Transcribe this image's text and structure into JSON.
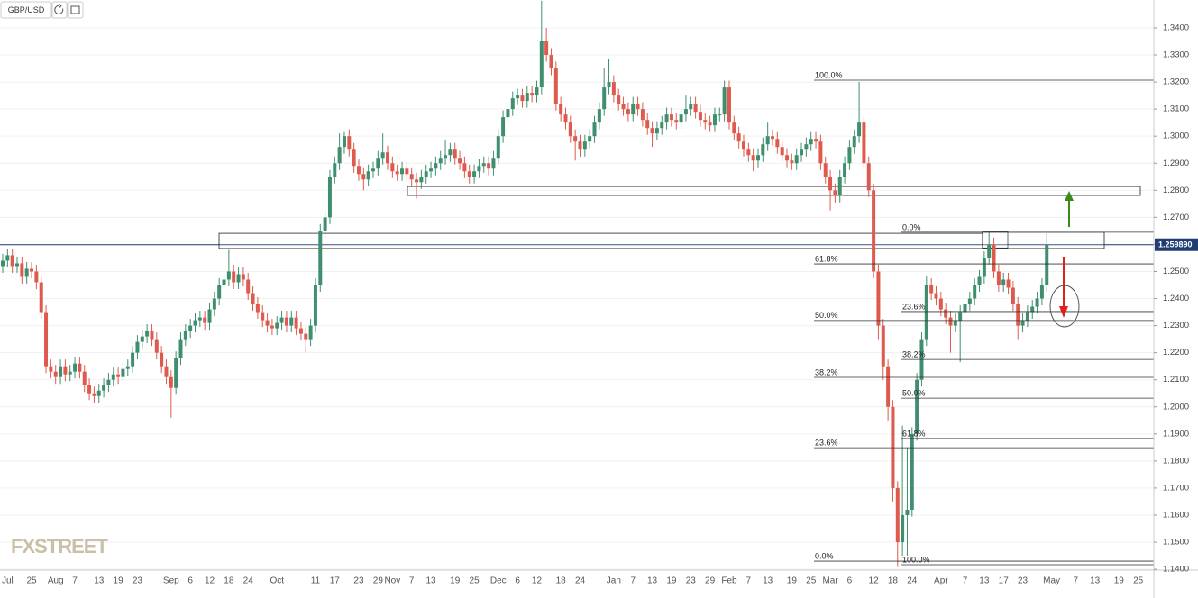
{
  "chart_data": {
    "type": "candlestick",
    "title": "GBP/USD",
    "watermark": "FXSTREET",
    "up_color": "#3f8f6e",
    "down_color": "#df5a4e",
    "ylim": [
      1.1397,
      1.3503
    ],
    "yticks": [
      {
        "value": 1.34,
        "label": "1.3400"
      },
      {
        "value": 1.33,
        "label": "1.3300"
      },
      {
        "value": 1.32,
        "label": "1.3200"
      },
      {
        "value": 1.31,
        "label": "1.3100"
      },
      {
        "value": 1.3,
        "label": "1.3000"
      },
      {
        "value": 1.29,
        "label": "1.2900"
      },
      {
        "value": 1.28,
        "label": "1.2800"
      },
      {
        "value": 1.27,
        "label": "1.2700"
      },
      {
        "value": 1.26,
        "label": "1.2600"
      },
      {
        "value": 1.25,
        "label": "1.2500"
      },
      {
        "value": 1.24,
        "label": "1.2400"
      },
      {
        "value": 1.23,
        "label": "1.2300"
      },
      {
        "value": 1.22,
        "label": "1.2200"
      },
      {
        "value": 1.21,
        "label": "1.2100"
      },
      {
        "value": 1.2,
        "label": "1.2000"
      },
      {
        "value": 1.19,
        "label": "1.1900"
      },
      {
        "value": 1.18,
        "label": "1.1800"
      },
      {
        "value": 1.17,
        "label": "1.1700"
      },
      {
        "value": 1.16,
        "label": "1.1600"
      },
      {
        "value": 1.15,
        "label": "1.1500"
      },
      {
        "value": 1.14,
        "label": "1.1400"
      }
    ],
    "grid": true,
    "last_price": {
      "value": 1.25989,
      "label": "1.259890"
    },
    "categories": [
      null,
      "Jul",
      null,
      null,
      null,
      null,
      "25",
      null,
      null,
      null,
      null,
      "Aug",
      null,
      null,
      null,
      "7",
      null,
      null,
      null,
      null,
      "13",
      null,
      null,
      null,
      "19",
      null,
      null,
      null,
      "23",
      null,
      null,
      null,
      null,
      null,
      null,
      "Sep",
      null,
      null,
      null,
      "6",
      null,
      null,
      null,
      "12",
      null,
      null,
      null,
      "18",
      null,
      null,
      null,
      "24",
      null,
      null,
      null,
      null,
      null,
      "Oct",
      null,
      null,
      null,
      null,
      null,
      null,
      null,
      "11",
      null,
      null,
      null,
      "17",
      null,
      null,
      null,
      null,
      "23",
      null,
      null,
      null,
      "29",
      null,
      null,
      "Nov",
      null,
      null,
      null,
      "7",
      null,
      null,
      null,
      "13",
      null,
      null,
      null,
      null,
      "19",
      null,
      null,
      null,
      "25",
      null,
      null,
      null,
      null,
      "Dec",
      null,
      null,
      null,
      "6",
      null,
      null,
      null,
      "12",
      null,
      null,
      null,
      null,
      "18",
      null,
      null,
      null,
      "24",
      null,
      null,
      null,
      null,
      null,
      null,
      "Jan",
      null,
      null,
      null,
      "7",
      null,
      null,
      null,
      "13",
      null,
      null,
      null,
      "19",
      null,
      null,
      null,
      "23",
      null,
      null,
      null,
      "29",
      null,
      null,
      null,
      "Feb",
      null,
      null,
      null,
      "7",
      null,
      null,
      null,
      "13",
      null,
      null,
      null,
      null,
      "19",
      null,
      null,
      null,
      "25",
      null,
      null,
      null,
      "Mar",
      null,
      null,
      null,
      "6",
      null,
      null,
      null,
      null,
      "12",
      null,
      null,
      null,
      "18",
      null,
      null,
      null,
      "24",
      null,
      null,
      null,
      null,
      null,
      "Apr",
      null,
      null,
      null,
      null,
      "7",
      null,
      null,
      null,
      "13",
      null,
      null,
      null,
      "17",
      null,
      null,
      null,
      "23",
      null,
      null,
      null,
      null,
      null,
      "May",
      null,
      null,
      null,
      null,
      "7",
      null,
      null,
      null,
      "13",
      null,
      null,
      null,
      null,
      "19",
      null,
      null,
      null,
      "25",
      null
    ],
    "open": [
      1.252,
      1.254,
      1.256,
      1.252,
      1.253,
      1.248,
      1.251,
      1.25,
      1.246,
      1.235,
      1.215,
      1.213,
      1.211,
      1.215,
      1.212,
      1.213,
      1.216,
      1.213,
      1.208,
      1.205,
      1.204,
      1.206,
      1.208,
      1.21,
      1.212,
      1.211,
      1.214,
      1.215,
      1.22,
      1.224,
      1.226,
      1.228,
      1.225,
      1.22,
      1.215,
      1.211,
      1.207,
      1.218,
      1.225,
      1.228,
      1.23,
      1.232,
      1.233,
      1.231,
      1.236,
      1.24,
      1.245,
      1.247,
      1.25,
      1.246,
      1.249,
      1.247,
      1.242,
      1.238,
      1.235,
      1.232,
      1.23,
      1.229,
      1.231,
      1.233,
      1.23,
      1.233,
      1.229,
      1.227,
      1.225,
      1.23,
      1.245,
      1.265,
      1.27,
      1.285,
      1.29,
      1.296,
      1.3,
      1.295,
      1.289,
      1.286,
      1.284,
      1.287,
      1.288,
      1.292,
      1.294,
      1.29,
      1.287,
      1.286,
      1.288,
      1.286,
      1.284,
      1.283,
      1.285,
      1.287,
      1.288,
      1.29,
      1.292,
      1.293,
      1.295,
      1.292,
      1.29,
      1.287,
      1.285,
      1.287,
      1.289,
      1.29,
      1.288,
      1.292,
      1.3,
      1.307,
      1.31,
      1.314,
      1.315,
      1.313,
      1.316,
      1.315,
      1.318,
      1.335,
      1.33,
      1.325,
      1.312,
      1.308,
      1.305,
      1.3,
      1.298,
      1.295,
      1.298,
      1.3,
      1.305,
      1.31,
      1.318,
      1.32,
      1.315,
      1.312,
      1.31,
      1.308,
      1.312,
      1.31,
      1.306,
      1.303,
      1.301,
      1.303,
      1.305,
      1.308,
      1.306,
      1.305,
      1.308,
      1.31,
      1.312,
      1.309,
      1.306,
      1.305,
      1.304,
      1.308,
      1.308,
      1.318,
      1.305,
      1.301,
      1.298,
      1.295,
      1.293,
      1.291,
      1.293,
      1.297,
      1.3,
      1.299,
      1.296,
      1.293,
      1.291,
      1.29,
      1.293,
      1.295,
      1.297,
      1.299,
      1.298,
      1.29,
      1.285,
      1.28,
      1.278,
      1.285,
      1.29,
      1.296,
      1.3,
      1.305,
      1.29,
      1.28,
      1.25,
      1.23,
      1.215,
      1.2,
      1.17,
      1.15,
      1.16,
      1.162,
      1.19,
      1.21,
      1.225,
      1.245,
      1.242,
      1.24,
      1.236,
      1.233,
      1.23,
      1.232,
      1.235,
      1.238,
      1.24,
      1.245,
      1.248,
      1.255,
      1.26,
      1.25,
      1.245,
      1.247,
      1.244,
      1.238,
      1.23,
      1.232,
      1.235,
      1.237,
      1.24,
      1.245,
      null,
      null,
      null,
      null,
      null,
      null,
      null,
      null,
      null,
      null,
      null,
      null,
      null,
      null,
      null,
      null,
      null,
      null,
      null,
      null
    ],
    "high": [
      1.2565,
      1.2585,
      1.2585,
      1.2555,
      1.2555,
      1.2535,
      1.2535,
      1.2525,
      1.2485,
      1.2375,
      1.2175,
      1.2155,
      1.2175,
      1.2175,
      1.2155,
      1.2185,
      1.2185,
      1.2155,
      1.2105,
      1.2075,
      1.2085,
      1.2105,
      1.2125,
      1.2145,
      1.2145,
      1.2165,
      1.2175,
      1.2225,
      1.2265,
      1.2285,
      1.2305,
      1.2305,
      1.2275,
      1.2225,
      1.2175,
      1.2135,
      1.2205,
      1.2275,
      1.2305,
      1.2325,
      1.2345,
      1.2355,
      1.2355,
      1.2385,
      1.2425,
      1.2475,
      1.2495,
      1.258,
      1.2525,
      1.2515,
      1.2515,
      1.2495,
      1.2445,
      1.2405,
      1.2375,
      1.2345,
      1.2325,
      1.2335,
      1.2355,
      1.2355,
      1.2355,
      1.2355,
      1.2315,
      1.2295,
      1.2325,
      1.2475,
      1.2675,
      1.2725,
      1.2875,
      1.2925,
      1.301,
      1.3015,
      1.3025,
      1.2975,
      1.2915,
      1.2885,
      1.2895,
      1.2905,
      1.2945,
      1.301,
      1.2965,
      1.2925,
      1.2895,
      1.2905,
      1.2905,
      1.2885,
      1.2865,
      1.2875,
      1.2895,
      1.2905,
      1.2925,
      1.2945,
      1.2985,
      1.2975,
      1.2975,
      1.2945,
      1.2925,
      1.2895,
      1.2895,
      1.2915,
      1.2925,
      1.2925,
      1.2945,
      1.3025,
      1.3095,
      1.3125,
      1.3165,
      1.3175,
      1.3175,
      1.3185,
      1.3185,
      1.3205,
      1.35,
      1.34,
      1.3325,
      1.3275,
      1.3145,
      1.3105,
      1.3075,
      1.3025,
      1.3005,
      1.3005,
      1.3025,
      1.3075,
      1.3125,
      1.325,
      1.3285,
      1.3225,
      1.3175,
      1.3145,
      1.3125,
      1.3145,
      1.3145,
      1.3125,
      1.3085,
      1.3055,
      1.3055,
      1.3075,
      1.3105,
      1.3105,
      1.3085,
      1.3105,
      1.315,
      1.3145,
      1.3145,
      1.3115,
      1.3085,
      1.3075,
      1.3105,
      1.3105,
      1.3205,
      1.3205,
      1.3075,
      1.3035,
      1.3005,
      1.2975,
      1.2955,
      1.2955,
      1.2995,
      1.305,
      1.3025,
      1.3015,
      1.2985,
      1.2955,
      1.2935,
      1.2955,
      1.2975,
      1.2995,
      1.3015,
      1.3015,
      1.3005,
      1.2925,
      1.2875,
      1.2825,
      1.2875,
      1.2925,
      1.2985,
      1.3025,
      1.32,
      1.3075,
      1.2925,
      1.2825,
      1.2525,
      1.2325,
      1.2175,
      1.2025,
      1.1725,
      1.193,
      1.185,
      1.1925,
      1.2125,
      1.2275,
      1.2485,
      1.2475,
      1.2445,
      1.2425,
      1.2385,
      1.2355,
      1.2345,
      1.2375,
      1.2405,
      1.2425,
      1.2475,
      1.2505,
      1.2575,
      1.265,
      1.2625,
      1.2525,
      1.2495,
      1.2495,
      1.2465,
      1.2405,
      1.2345,
      1.2375,
      1.2395,
      1.2425,
      1.2475,
      1.264,
      null,
      null,
      null,
      null,
      null,
      null,
      null,
      null,
      null,
      null,
      null,
      null,
      null,
      null,
      null,
      null,
      null,
      null,
      null,
      null
    ],
    "low": [
      1.2495,
      1.2515,
      1.2495,
      1.2495,
      1.2455,
      1.2455,
      1.2475,
      1.2435,
      1.2325,
      1.2125,
      1.2105,
      1.2085,
      1.2085,
      1.2095,
      1.2095,
      1.2105,
      1.2105,
      1.2055,
      1.2025,
      1.2015,
      1.2015,
      1.2035,
      1.2055,
      1.2075,
      1.2085,
      1.2085,
      1.2115,
      1.2125,
      1.2175,
      1.2215,
      1.2235,
      1.2225,
      1.2175,
      1.2125,
      1.2085,
      1.196,
      1.2045,
      1.2155,
      1.2225,
      1.2255,
      1.2275,
      1.2295,
      1.2285,
      1.2285,
      1.2335,
      1.2375,
      1.2425,
      1.2445,
      1.2435,
      1.2435,
      1.2445,
      1.2395,
      1.2355,
      1.2325,
      1.2295,
      1.2275,
      1.2265,
      1.2265,
      1.2285,
      1.2275,
      1.2275,
      1.2265,
      1.2245,
      1.22,
      1.2225,
      1.2275,
      1.2425,
      1.2625,
      1.2675,
      1.2825,
      1.2875,
      1.2935,
      1.2925,
      1.2865,
      1.2835,
      1.28,
      1.2815,
      1.2845,
      1.2855,
      1.2895,
      1.2875,
      1.2845,
      1.2835,
      1.2835,
      1.2835,
      1.2815,
      1.277,
      1.2805,
      1.2825,
      1.2845,
      1.2855,
      1.2875,
      1.2895,
      1.2905,
      1.2895,
      1.2875,
      1.2845,
      1.2825,
      1.2825,
      1.2845,
      1.2865,
      1.2855,
      1.2855,
      1.2895,
      1.2975,
      1.3045,
      1.3075,
      1.3115,
      1.3105,
      1.3105,
      1.3125,
      1.3125,
      1.3155,
      1.3275,
      1.3225,
      1.3095,
      1.3055,
      1.3025,
      1.2975,
      1.291,
      1.2925,
      1.2925,
      1.2955,
      1.2975,
      1.3025,
      1.3075,
      1.3155,
      1.3125,
      1.3095,
      1.3075,
      1.3055,
      1.3055,
      1.3075,
      1.3035,
      1.3005,
      1.296,
      1.2985,
      1.3005,
      1.3025,
      1.3035,
      1.3025,
      1.3025,
      1.3055,
      1.3075,
      1.3065,
      1.3035,
      1.3025,
      1.3015,
      1.3015,
      1.3055,
      1.3055,
      1.3025,
      1.2985,
      1.2955,
      1.2925,
      1.2905,
      1.287,
      1.2885,
      1.2905,
      1.2945,
      1.2965,
      1.2935,
      1.2905,
      1.2885,
      1.2875,
      1.2875,
      1.2905,
      1.2925,
      1.2945,
      1.2955,
      1.2875,
      1.2825,
      1.2725,
      1.2755,
      1.2755,
      1.2825,
      1.2875,
      1.2935,
      1.2975,
      1.2875,
      1.2775,
      1.2475,
      1.225,
      1.21,
      1.195,
      1.165,
      1.1409,
      1.145,
      1.145,
      1.1595,
      1.1875,
      1.2075,
      1.2225,
      1.2395,
      1.2375,
      1.2335,
      1.2305,
      1.22,
      1.2275,
      1.2165,
      1.2325,
      1.2355,
      1.2375,
      1.2425,
      1.2455,
      1.2525,
      1.2475,
      1.2425,
      1.2425,
      1.2415,
      1.2355,
      1.225,
      1.2275,
      1.2295,
      1.2325,
      1.2345,
      1.2375,
      1.2425,
      null,
      null,
      null,
      null,
      null,
      null,
      null,
      null,
      null,
      null,
      null,
      null,
      null,
      null,
      null,
      null,
      null,
      null,
      null,
      null
    ],
    "close": [
      1.254,
      1.256,
      1.252,
      1.253,
      1.248,
      1.251,
      1.25,
      1.246,
      1.235,
      1.215,
      1.213,
      1.211,
      1.215,
      1.212,
      1.213,
      1.216,
      1.213,
      1.208,
      1.205,
      1.204,
      1.206,
      1.208,
      1.21,
      1.212,
      1.211,
      1.214,
      1.215,
      1.22,
      1.224,
      1.226,
      1.228,
      1.225,
      1.22,
      1.215,
      1.211,
      1.207,
      1.218,
      1.225,
      1.228,
      1.23,
      1.232,
      1.233,
      1.231,
      1.236,
      1.24,
      1.245,
      1.247,
      1.25,
      1.246,
      1.249,
      1.247,
      1.242,
      1.238,
      1.235,
      1.232,
      1.23,
      1.229,
      1.231,
      1.233,
      1.23,
      1.233,
      1.229,
      1.227,
      1.225,
      1.23,
      1.245,
      1.265,
      1.27,
      1.285,
      1.29,
      1.296,
      1.3,
      1.295,
      1.289,
      1.286,
      1.284,
      1.287,
      1.288,
      1.292,
      1.294,
      1.29,
      1.287,
      1.286,
      1.288,
      1.286,
      1.284,
      1.283,
      1.285,
      1.287,
      1.288,
      1.29,
      1.292,
      1.293,
      1.295,
      1.292,
      1.29,
      1.287,
      1.285,
      1.287,
      1.289,
      1.29,
      1.288,
      1.292,
      1.3,
      1.307,
      1.31,
      1.314,
      1.315,
      1.313,
      1.316,
      1.315,
      1.318,
      1.335,
      1.33,
      1.325,
      1.312,
      1.308,
      1.305,
      1.3,
      1.298,
      1.295,
      1.298,
      1.3,
      1.305,
      1.31,
      1.318,
      1.32,
      1.315,
      1.312,
      1.31,
      1.308,
      1.312,
      1.31,
      1.306,
      1.303,
      1.301,
      1.303,
      1.305,
      1.308,
      1.306,
      1.305,
      1.308,
      1.31,
      1.312,
      1.309,
      1.306,
      1.305,
      1.304,
      1.308,
      1.308,
      1.318,
      1.305,
      1.301,
      1.298,
      1.295,
      1.293,
      1.291,
      1.293,
      1.297,
      1.3,
      1.299,
      1.296,
      1.293,
      1.291,
      1.29,
      1.293,
      1.295,
      1.297,
      1.299,
      1.298,
      1.29,
      1.285,
      1.28,
      1.278,
      1.285,
      1.29,
      1.296,
      1.3,
      1.305,
      1.29,
      1.28,
      1.25,
      1.23,
      1.215,
      1.2,
      1.17,
      1.15,
      1.16,
      1.162,
      1.19,
      1.21,
      1.225,
      1.245,
      1.242,
      1.24,
      1.236,
      1.233,
      1.23,
      1.232,
      1.235,
      1.238,
      1.24,
      1.245,
      1.248,
      1.255,
      1.26,
      1.25,
      1.245,
      1.247,
      1.244,
      1.238,
      1.23,
      1.232,
      1.235,
      1.237,
      1.24,
      1.245,
      1.2599,
      null,
      null,
      null,
      null,
      null,
      null,
      null,
      null,
      null,
      null,
      null,
      null,
      null,
      null,
      null,
      null,
      null,
      null,
      null,
      null
    ],
    "zones": [
      {
        "top": 1.2814,
        "bottom": 1.2781
      },
      {
        "top": 1.2641,
        "bottom": 1.2585
      },
      {
        "top": 1.2648,
        "bottom": 1.2587
      },
      {
        "top": 1.2645,
        "bottom": 1.2585
      }
    ],
    "fib_sets": [
      {
        "levels": [
          {
            "label": "100.0%",
            "price": 1.3207
          },
          {
            "label": "61.8%",
            "price": 1.2528
          },
          {
            "label": "50.0%",
            "price": 1.2319
          },
          {
            "label": "38.2%",
            "price": 1.2109
          },
          {
            "label": "23.6%",
            "price": 1.1849
          },
          {
            "label": "0.0%",
            "price": 1.143
          }
        ]
      },
      {
        "levels": [
          {
            "label": "0.0%",
            "price": 1.2645
          },
          {
            "label": "23.6%",
            "price": 1.2352
          },
          {
            "label": "38.2%",
            "price": 1.2175
          },
          {
            "label": "50.0%",
            "price": 1.2032
          },
          {
            "label": "61.8%",
            "price": 1.1883
          },
          {
            "label": "100.0%",
            "price": 1.1417
          }
        ]
      }
    ]
  }
}
